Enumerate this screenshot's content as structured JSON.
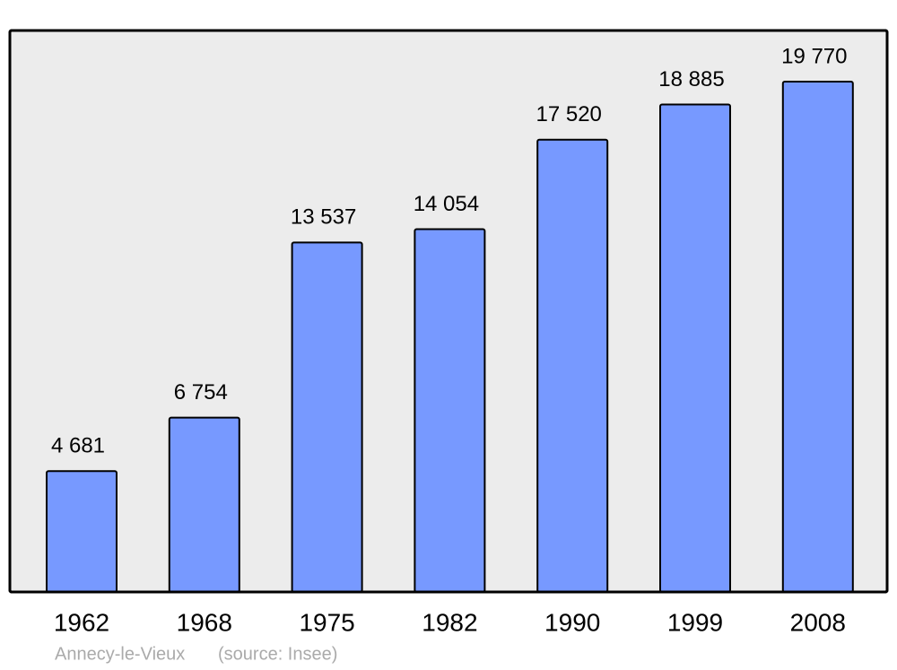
{
  "chart_data": {
    "type": "bar",
    "categories": [
      "1962",
      "1968",
      "1975",
      "1982",
      "1990",
      "1999",
      "2008"
    ],
    "values": [
      4681,
      6754,
      13537,
      14054,
      17520,
      18885,
      19770
    ],
    "value_labels": [
      "4 681",
      "6 754",
      "13 537",
      "14 054",
      "17 520",
      "18 885",
      "19 770"
    ],
    "color": "#7799ff",
    "place": "Annecy-le-Vieux",
    "source": "(source: Insee)"
  }
}
